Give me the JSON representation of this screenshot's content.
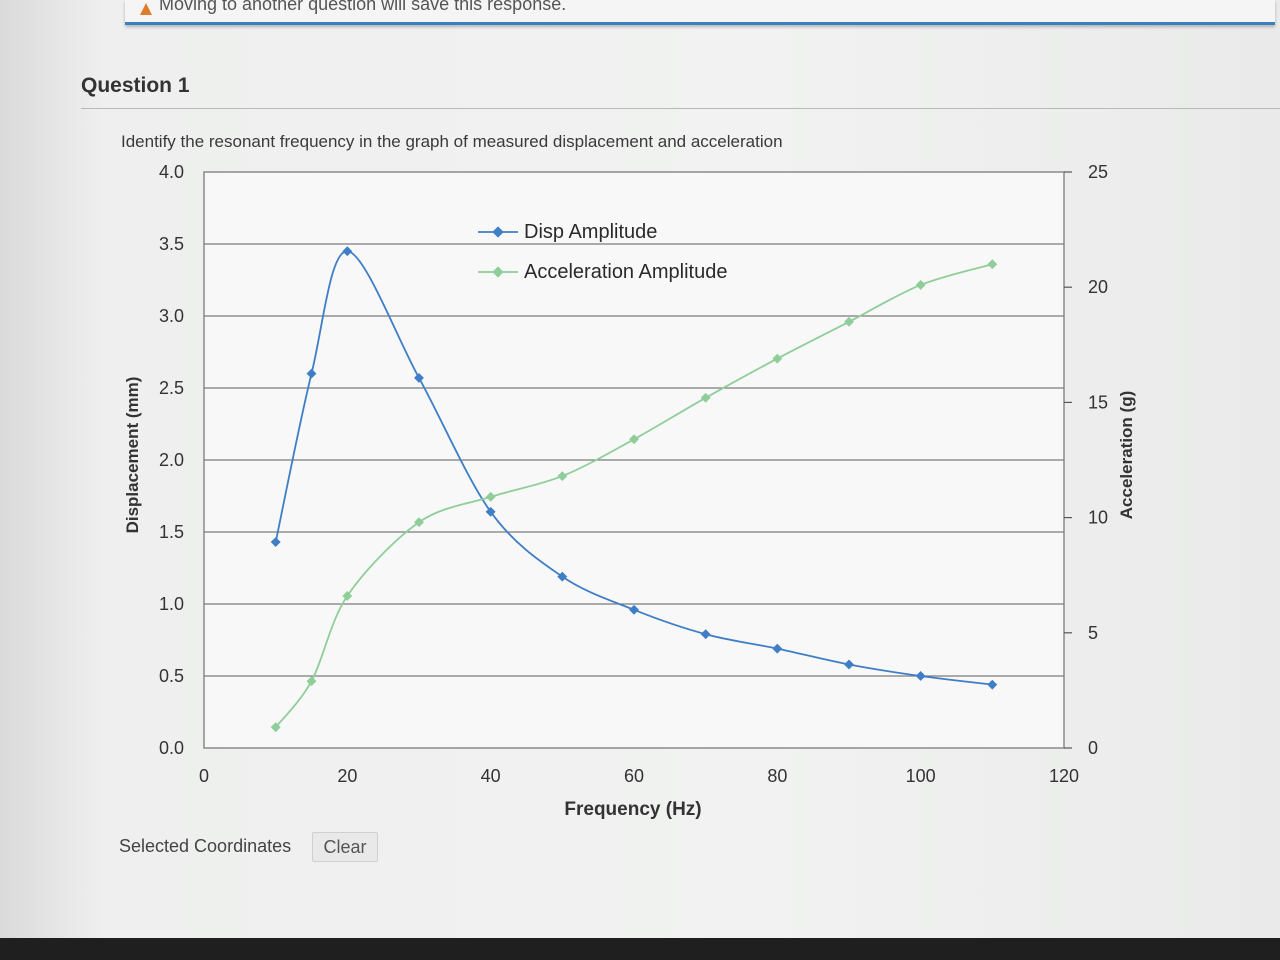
{
  "warning": {
    "text": "Moving to another question will save this response."
  },
  "question": {
    "title": "Question 1",
    "prompt": "Identify the resonant frequency in the graph of measured displacement and acceleration"
  },
  "chart_data": {
    "type": "line",
    "title": "",
    "xlabel": "Frequency (Hz)",
    "ylabel": "Displacement (mm)",
    "y2label": "Acceleration (g)",
    "xlim": [
      0,
      120
    ],
    "ylim": [
      0,
      4
    ],
    "y2lim": [
      0,
      25
    ],
    "xticks": [
      "0",
      "20",
      "40",
      "60",
      "80",
      "100",
      "120"
    ],
    "yticks": [
      "0.0",
      "0.5",
      "1.0",
      "1.5",
      "2.0",
      "2.5",
      "3.0",
      "3.5",
      "4.0"
    ],
    "y2ticks": [
      "0",
      "5",
      "10",
      "15",
      "20",
      "25"
    ],
    "grid": "horizontal",
    "legend_position": "top-center",
    "series": [
      {
        "name": "Disp Amplitude",
        "axis": "left",
        "color": "#3f7ec6",
        "x": [
          10,
          15,
          20,
          30,
          40,
          50,
          60,
          70,
          80,
          90,
          100,
          110
        ],
        "y": [
          1.43,
          2.6,
          3.45,
          2.57,
          1.64,
          1.19,
          0.96,
          0.79,
          0.69,
          0.58,
          0.5,
          0.44
        ]
      },
      {
        "name": "Acceleration Amplitude",
        "axis": "right",
        "color": "#8fce9a",
        "x": [
          10,
          15,
          20,
          30,
          40,
          50,
          60,
          70,
          80,
          90,
          100,
          110
        ],
        "y": [
          0.9,
          2.9,
          6.6,
          9.8,
          10.9,
          11.8,
          13.4,
          15.2,
          16.9,
          18.5,
          20.1,
          21.0
        ]
      }
    ]
  },
  "footer": {
    "coords_label": "Selected Coordinates",
    "clear_label": "Clear"
  }
}
